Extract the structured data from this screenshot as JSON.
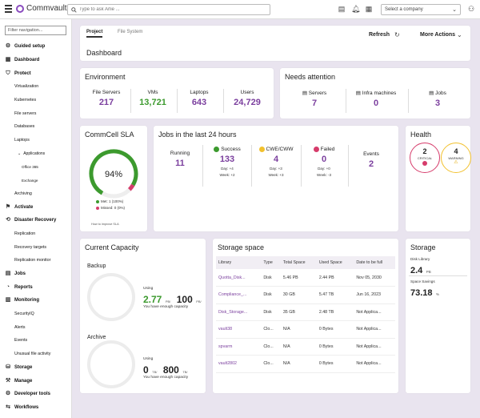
{
  "topbar": {
    "brand": "Commvault",
    "search_placeholder": "Type to ask Arlie ...",
    "company_select": "Select a company",
    "icons": [
      "hamburger-icon",
      "search-icon",
      "report-icon",
      "bell-icon",
      "grid-icon",
      "user-icon"
    ]
  },
  "sidebar": {
    "filter_placeholder": "Filter navigation...",
    "items": [
      {
        "label": "Guided setup",
        "level": "top",
        "icon": "setup-icon"
      },
      {
        "label": "Dashboard",
        "level": "top",
        "icon": "dashboard-icon"
      },
      {
        "label": "Protect",
        "level": "top",
        "icon": "shield-icon"
      },
      {
        "label": "Virtualization",
        "level": "sub"
      },
      {
        "label": "Kubernetes",
        "level": "sub"
      },
      {
        "label": "File servers",
        "level": "sub"
      },
      {
        "label": "Databases",
        "level": "sub"
      },
      {
        "label": "Laptops",
        "level": "sub"
      },
      {
        "label": "Applications",
        "level": "sub2"
      },
      {
        "label": "Office 365",
        "level": "sub3"
      },
      {
        "label": "Exchange",
        "level": "sub3"
      },
      {
        "label": "Archiving",
        "level": "sub"
      },
      {
        "label": "Activate",
        "level": "top",
        "icon": "activate-icon"
      },
      {
        "label": "Disaster Recovery",
        "level": "top",
        "icon": "recovery-icon"
      },
      {
        "label": "Replication",
        "level": "sub"
      },
      {
        "label": "Recovery targets",
        "level": "sub"
      },
      {
        "label": "Replication monitor",
        "level": "sub"
      },
      {
        "label": "Jobs",
        "level": "top",
        "icon": "jobs-icon"
      },
      {
        "label": "Reports",
        "level": "top",
        "icon": "reports-icon"
      },
      {
        "label": "Monitoring",
        "level": "top",
        "icon": "monitoring-icon"
      },
      {
        "label": "SecurityIQ",
        "level": "sub"
      },
      {
        "label": "Alerts",
        "level": "sub"
      },
      {
        "label": "Events",
        "level": "sub"
      },
      {
        "label": "Unusual file activity",
        "level": "sub"
      },
      {
        "label": "Storage",
        "level": "top",
        "icon": "storage-icon"
      },
      {
        "label": "Manage",
        "level": "top",
        "icon": "manage-icon"
      },
      {
        "label": "Developer tools",
        "level": "top",
        "icon": "developer-icon"
      },
      {
        "label": "Workflows",
        "level": "top",
        "icon": "workflow-icon"
      }
    ]
  },
  "header": {
    "tabs": [
      "Project",
      "File System"
    ],
    "title": "Dashboard",
    "refresh_label": "Refresh",
    "more_actions_label": "More Actions"
  },
  "environment": {
    "title": "Environment",
    "stats": [
      {
        "label": "File Servers",
        "value": "217",
        "color": "#7b3f9e"
      },
      {
        "label": "VMs",
        "value": "13,721",
        "color": "#3c9a2e"
      },
      {
        "label": "Laptops",
        "value": "643",
        "color": "#7b3f9e"
      },
      {
        "label": "Users",
        "value": "24,729",
        "color": "#7b3f9e"
      }
    ]
  },
  "attention": {
    "title": "Needs attention",
    "stats": [
      {
        "label": "Servers",
        "value": "7"
      },
      {
        "label": "Infra machines",
        "value": "0"
      },
      {
        "label": "Jobs",
        "value": "3"
      }
    ]
  },
  "sla": {
    "title": "CommCell SLA",
    "percent": "94%",
    "met_label": "Met: 1 (100%)",
    "missed_label": "Missed: 0 (0%)",
    "footer": "How to improve SLA",
    "met_color": "#3c9a2e",
    "missed_color": "#d63c6b"
  },
  "jobs24": {
    "title": "Jobs in the last 24 hours",
    "running": {
      "label": "Running",
      "value": "11"
    },
    "success": {
      "label": "Success",
      "value": "133",
      "day": "Day: +4",
      "week": "Week: +2",
      "color": "#3c9a2e"
    },
    "cwe": {
      "label": "CWE/CWW",
      "value": "4",
      "day": "Day: +3",
      "week": "Week: +3",
      "color": "#f2c12e"
    },
    "failed": {
      "label": "Failed",
      "value": "0",
      "day": "Day: +0",
      "week": "Week: -3",
      "color": "#d63c6b"
    },
    "events": {
      "label": "Events",
      "value": "2"
    }
  },
  "health": {
    "title": "Health",
    "critical": {
      "value": "2",
      "label": "CRITICAL",
      "color": "#d63c6b"
    },
    "warning": {
      "value": "4",
      "label": "WARNING",
      "color": "#f2c12e"
    }
  },
  "capacity": {
    "title": "Current Capacity",
    "backup": {
      "label": "Backup",
      "using": "Using",
      "used": "2.77",
      "used_unit": "PB/",
      "total": "100",
      "total_unit": "PB/",
      "note": "You have enough capacity"
    },
    "archive": {
      "label": "Archive",
      "using": "Using",
      "used": "0",
      "used_unit": "TB/",
      "total": "800",
      "total_unit": "TB/",
      "note": "You have enough capacity"
    }
  },
  "storage_space": {
    "title": "Storage space",
    "columns": [
      "Library",
      "Type",
      "Total Space",
      "Used Space",
      "Date to be full"
    ],
    "rows": [
      [
        "Quotta_Disk...",
        "Disk",
        "5.46 PB",
        "2.44 PB",
        "Nov 05, 2030"
      ],
      [
        "Compliance_...",
        "Disk",
        "30 GB",
        "5.47 TB",
        "Jun 16, 2023"
      ],
      [
        "Disk_Storage...",
        "Disk",
        "35 GB",
        "2.48 TB",
        "Not Applica..."
      ],
      [
        "vault38",
        "Clo...",
        "N/A",
        "0 Bytes",
        "Not Applica..."
      ],
      [
        "spvarm",
        "Clo...",
        "N/A",
        "0 Bytes",
        "Not Applica..."
      ],
      [
        "vault2802",
        "Clo...",
        "N/A",
        "0 Bytes",
        "Not Applica..."
      ]
    ]
  },
  "storage": {
    "title": "Storage",
    "disk_label": "Disk Library",
    "disk_value": "2.4",
    "disk_unit": "PB",
    "savings_label": "Space Savings",
    "savings_value": "73.18",
    "savings_unit": "%"
  }
}
